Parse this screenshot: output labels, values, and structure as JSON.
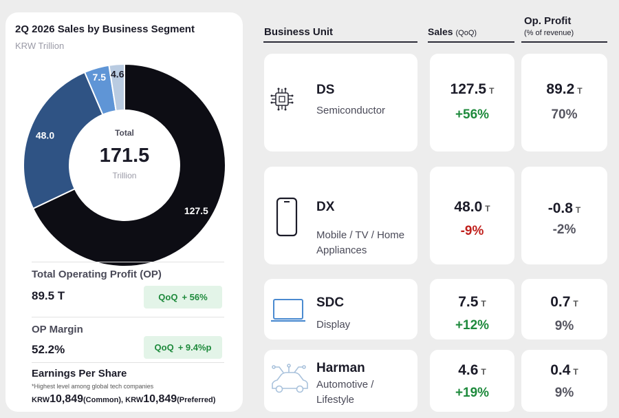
{
  "chart_data": {
    "type": "pie",
    "title": "2Q 2026 Sales by Business Segment",
    "subtitle": "KRW Trillion",
    "categories": [
      "DS",
      "DX",
      "SDC",
      "Harman"
    ],
    "values": [
      127.5,
      48.0,
      7.5,
      4.6
    ],
    "value_labels": [
      "127.5",
      "48.0",
      "7.5",
      "4.6"
    ],
    "colors": [
      "#0d0d14",
      "#2f5384",
      "#5f95d6",
      "#b9cbe1"
    ],
    "center": {
      "title": "Total",
      "value": "171.5",
      "unit": "Trillion"
    }
  },
  "metrics": {
    "op": {
      "label": "Total Operating Profit (OP)",
      "value": "89.5 T",
      "badge_label": "QoQ",
      "badge_value": "+ 56%"
    },
    "margin": {
      "label": "OP Margin",
      "value": "52.2%",
      "badge_label": "QoQ",
      "badge_value": "+ 9.4%p"
    },
    "eps": {
      "label": "Earnings Per Share",
      "note": "*Highest level among global tech companies",
      "currency": "KRW",
      "common_value": "10,849",
      "common_label": "(Common),",
      "preferred_value": "10,849",
      "preferred_label": "(Preferred)"
    }
  },
  "table": {
    "headers": {
      "unit": "Business Unit",
      "sales": "Sales",
      "sales_sub": "(QoQ)",
      "profit": "Op. Profit",
      "profit_sub": "(% of revenue)"
    },
    "unit_suffix": "T",
    "rows": [
      {
        "name": "DS",
        "desc": "Semiconductor",
        "icon": "chip-icon",
        "sales": "127.5",
        "qoq": "+56%",
        "qoq_color": "green",
        "profit": "89.2",
        "margin": "70%"
      },
      {
        "name": "DX",
        "desc": "Mobile / TV / Home Appliances",
        "icon": "phone-icon",
        "sales": "48.0",
        "qoq": "-9%",
        "qoq_color": "red",
        "profit": "-0.8",
        "margin": "-2%"
      },
      {
        "name": "SDC",
        "desc": "Display",
        "icon": "laptop-icon",
        "sales": "7.5",
        "qoq": "+12%",
        "qoq_color": "green",
        "profit": "0.7",
        "margin": "9%"
      },
      {
        "name": "Harman",
        "desc": "Automotive / Lifestyle",
        "icon": "car-icon",
        "sales": "4.6",
        "qoq": "+19%",
        "qoq_color": "green",
        "profit": "0.4",
        "margin": "9%"
      }
    ]
  }
}
